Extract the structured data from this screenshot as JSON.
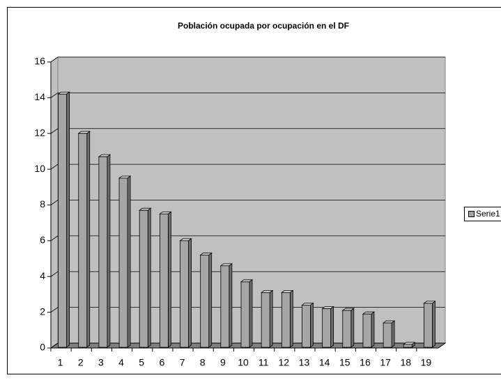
{
  "chart_data": {
    "type": "bar3d",
    "title": "Población ocupada por ocupación en el DF",
    "categories": [
      "1",
      "2",
      "3",
      "4",
      "5",
      "6",
      "7",
      "8",
      "9",
      "10",
      "11",
      "12",
      "13",
      "14",
      "15",
      "16",
      "17",
      "18",
      "19"
    ],
    "series": [
      {
        "name": "Serie1",
        "color": "#a6a6a6",
        "values": [
          14.2,
          12.0,
          10.7,
          9.5,
          7.7,
          7.5,
          6.0,
          5.2,
          4.6,
          3.7,
          3.1,
          3.1,
          2.4,
          2.2,
          2.1,
          1.9,
          1.4,
          0.2,
          2.5
        ]
      }
    ],
    "ylim": [
      0,
      16
    ],
    "yticks": [
      0,
      2,
      4,
      6,
      8,
      10,
      12,
      14,
      16
    ],
    "grid": true,
    "legend": "right"
  }
}
